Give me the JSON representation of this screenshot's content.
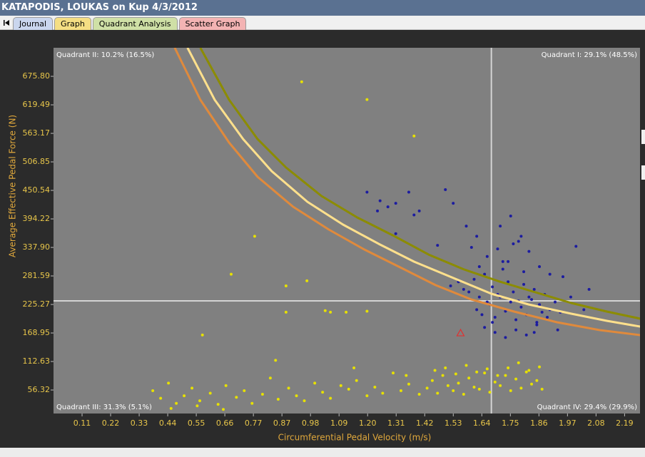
{
  "window": {
    "title": "KATAPODIS, LOUKAS on Kup 4/3/2012",
    "tabs": [
      "Journal",
      "Graph",
      "Quadrant Analysis",
      "Scatter Graph"
    ]
  },
  "chart_data": {
    "type": "scatter",
    "xlabel": "Circumferential Pedal Velocity (m/s)",
    "ylabel": "Average Effective Pedal Force (N)",
    "xlim": [
      0,
      2.245
    ],
    "ylim": [
      9.9,
      732.2
    ],
    "xticks": [
      {
        "value": 0.1093,
        "label": "0.11"
      },
      {
        "value": 0.2186,
        "label": "0.22"
      },
      {
        "value": 0.3279,
        "label": "0.33"
      },
      {
        "value": 0.4372,
        "label": "0.44"
      },
      {
        "value": 0.5465,
        "label": "0.55"
      },
      {
        "value": 0.6558,
        "label": "0.66"
      },
      {
        "value": 0.7651,
        "label": "0.77"
      },
      {
        "value": 0.8744,
        "label": "0.87"
      },
      {
        "value": 0.9837,
        "label": "0.98"
      },
      {
        "value": 1.093,
        "label": "1.09"
      },
      {
        "value": 1.2023,
        "label": "1.20"
      },
      {
        "value": 1.3116,
        "label": "1.31"
      },
      {
        "value": 1.4209,
        "label": "1.42"
      },
      {
        "value": 1.5302,
        "label": "1.53"
      },
      {
        "value": 1.6395,
        "label": "1.64"
      },
      {
        "value": 1.7488,
        "label": "1.75"
      },
      {
        "value": 1.8581,
        "label": "1.86"
      },
      {
        "value": 1.9674,
        "label": "1.97"
      },
      {
        "value": 2.0767,
        "label": "2.08"
      },
      {
        "value": 2.186,
        "label": "2.19"
      }
    ],
    "yticks": [
      56.32,
      112.63,
      168.95,
      225.27,
      281.59,
      {
        "value": 337.9,
        "label": "337.90"
      },
      394.22,
      450.54,
      506.85,
      563.17,
      619.49,
      {
        "value": 675.8,
        "label": "675.80"
      }
    ],
    "crosshair": {
      "x": 1.676,
      "y": 232.3,
      "color": "#d4d4d4"
    },
    "annotations": [
      {
        "text": "Quadrant II: 10.2% (16.5%)",
        "corner": "top-left"
      },
      {
        "text": "Quadrant I: 29.1% (48.5%)",
        "corner": "top-right"
      },
      {
        "text": "Quadrant III: 31.3% (5.1%)",
        "corner": "bottom-left"
      },
      {
        "text": "Quadrant IV: 29.4% (29.9%)",
        "corner": "bottom-right"
      }
    ],
    "series": [
      {
        "color": "#e6e000",
        "x": [
          0.95,
          1.2,
          1.38,
          0.77,
          0.68,
          0.89,
          0.89,
          0.97,
          1.04,
          1.06,
          1.12,
          1.2,
          0.57,
          0.38,
          0.41,
          0.44,
          0.47,
          0.5,
          0.53,
          0.56,
          0.6,
          0.63,
          0.66,
          0.7,
          0.73,
          0.76,
          0.8,
          0.83,
          0.86,
          0.9,
          0.93,
          0.96,
          1.0,
          1.03,
          1.06,
          1.1,
          1.13,
          1.16,
          1.2,
          1.23,
          1.26,
          1.3,
          1.33,
          1.36,
          1.4,
          1.43,
          1.45,
          1.47,
          1.49,
          1.51,
          1.53,
          1.55,
          1.57,
          1.59,
          1.61,
          1.63,
          1.65,
          1.67,
          1.69,
          1.71,
          1.73,
          1.75,
          1.77,
          1.79,
          1.81,
          1.83,
          1.85,
          1.87,
          1.46,
          1.5,
          1.54,
          1.58,
          1.62,
          1.66,
          1.7,
          1.74,
          1.78,
          1.82,
          1.86,
          0.45,
          0.55,
          0.65,
          0.85,
          1.15,
          1.35
        ],
        "values": [
          665,
          630,
          558,
          360,
          285,
          262,
          210,
          272,
          213,
          210,
          210,
          212,
          165,
          55,
          40,
          70,
          30,
          45,
          60,
          35,
          50,
          28,
          65,
          42,
          55,
          30,
          48,
          80,
          38,
          60,
          45,
          35,
          70,
          52,
          40,
          65,
          58,
          75,
          45,
          62,
          50,
          90,
          55,
          68,
          48,
          60,
          75,
          50,
          85,
          65,
          55,
          70,
          48,
          80,
          62,
          58,
          90,
          52,
          72,
          65,
          85,
          55,
          78,
          60,
          92,
          68,
          75,
          58,
          95,
          100,
          88,
          105,
          92,
          98,
          85,
          100,
          110,
          95,
          102,
          20,
          25,
          18,
          115,
          100,
          85
        ]
      },
      {
        "color": "#1c1ca0",
        "x": [
          1.2,
          1.25,
          1.24,
          1.28,
          1.31,
          1.36,
          1.38,
          1.4,
          1.31,
          1.5,
          1.53,
          1.47,
          1.58,
          1.62,
          1.6,
          1.52,
          1.55,
          1.57,
          1.59,
          1.61,
          1.63,
          1.65,
          1.66,
          1.68,
          1.7,
          1.72,
          1.74,
          1.76,
          1.78,
          1.8,
          1.82,
          1.84,
          1.86,
          1.88,
          1.9,
          1.92,
          1.94,
          1.62,
          1.64,
          1.67,
          1.69,
          1.71,
          1.73,
          1.75,
          1.77,
          1.79,
          1.81,
          1.83,
          1.85,
          1.87,
          1.89,
          1.63,
          1.66,
          1.7,
          1.74,
          1.78,
          1.82,
          1.86,
          1.9,
          1.95,
          2.0,
          2.05,
          1.65,
          1.69,
          1.73,
          1.77,
          1.81,
          1.85,
          1.72,
          1.76,
          1.8,
          1.68,
          1.84,
          1.98,
          2.03,
          1.93,
          1.71,
          1.75,
          1.79
        ],
        "values": [
          447,
          430,
          410,
          418,
          425,
          447,
          402,
          410,
          365,
          452,
          425,
          342,
          380,
          360,
          338,
          262,
          270,
          255,
          250,
          275,
          240,
          285,
          230,
          260,
          245,
          295,
          270,
          250,
          232,
          265,
          240,
          255,
          225,
          245,
          215,
          230,
          210,
          215,
          205,
          225,
          200,
          240,
          212,
          230,
          195,
          220,
          205,
          235,
          190,
          210,
          200,
          300,
          320,
          335,
          310,
          350,
          330,
          300,
          285,
          280,
          340,
          255,
          180,
          170,
          160,
          175,
          165,
          185,
          310,
          345,
          290,
          190,
          170,
          240,
          215,
          175,
          380,
          400,
          360
        ]
      }
    ],
    "lines": [
      {
        "color": "#8c8c00",
        "x": [
          0.562,
          0.672,
          0.781,
          0.89,
          1.026,
          1.163,
          1.299,
          1.436,
          1.572,
          1.709,
          1.845,
          1.982,
          2.118,
          2.246
        ],
        "values": [
          732.2,
          629.4,
          551.9,
          495.6,
          439.3,
          397.0,
          361.8,
          323.8,
          294.3,
          270.3,
          249.2,
          228.1,
          211.2,
          197.1
        ]
      },
      {
        "color": "#ffe08c",
        "x": [
          0.513,
          0.617,
          0.726,
          0.835,
          0.972,
          1.108,
          1.245,
          1.381,
          1.518,
          1.676,
          1.818,
          1.982,
          2.118,
          2.246
        ],
        "values": [
          732.2,
          629.4,
          551.9,
          488.6,
          428.0,
          383.0,
          344.9,
          309.7,
          280.2,
          246.4,
          225.3,
          207.0,
          192.9,
          181.6
        ]
      },
      {
        "color": "#e08a3c",
        "x": [
          0.464,
          0.562,
          0.672,
          0.781,
          0.917,
          1.054,
          1.19,
          1.327,
          1.463,
          1.6,
          1.763,
          1.927,
          2.091,
          2.246
        ],
        "values": [
          732.2,
          629.4,
          544.9,
          477.3,
          418.2,
          373.1,
          333.7,
          298.5,
          263.3,
          235.1,
          211.2,
          190.1,
          174.6,
          164.7
        ]
      }
    ],
    "marker": {
      "x": 1.558,
      "y": 168.9,
      "color": "#e03030"
    }
  }
}
